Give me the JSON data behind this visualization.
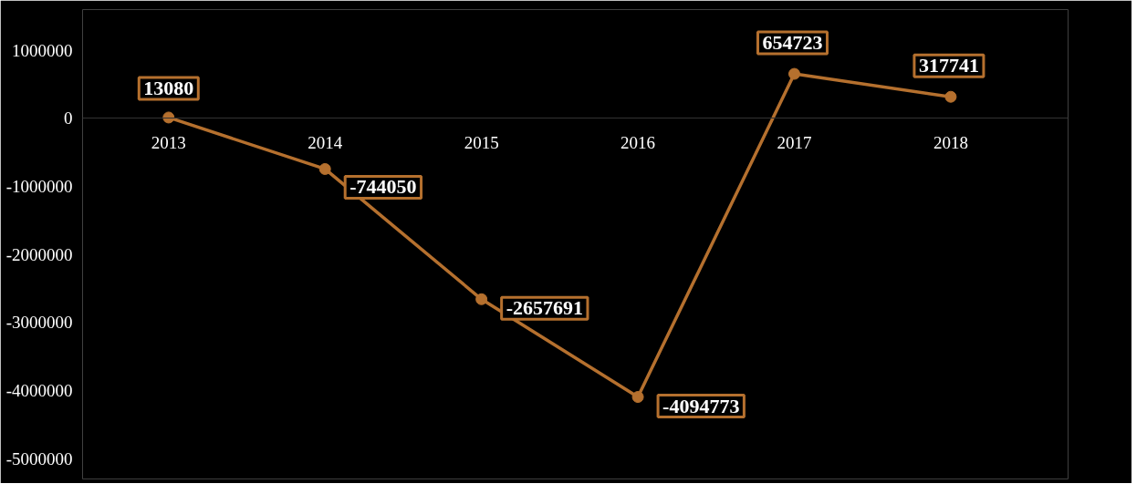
{
  "chart_data": {
    "type": "line",
    "categories": [
      "2013",
      "2014",
      "2015",
      "2016",
      "2017",
      "2018"
    ],
    "series": [
      {
        "color": "#b5702e",
        "values": [
          13080,
          -744050,
          -2657691,
          -4094773,
          654723,
          317741
        ]
      }
    ],
    "ylim": [
      -5300000,
      1600000
    ],
    "yticks": [
      -5000000,
      -4000000,
      -3000000,
      -2000000,
      -1000000,
      0,
      1000000
    ],
    "data_labels": true,
    "marker": "circle",
    "line_style": "solid"
  }
}
